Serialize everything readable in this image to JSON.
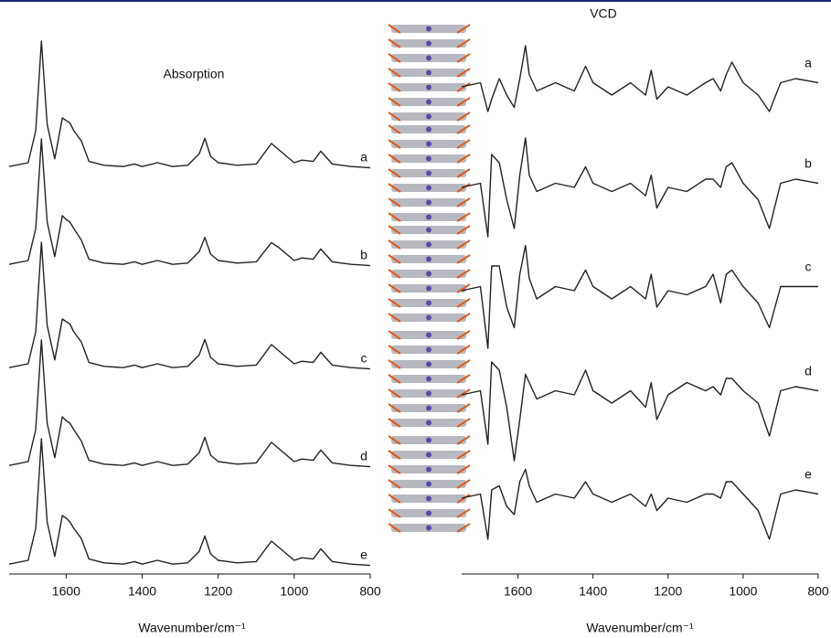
{
  "chart_data": [
    {
      "type": "line",
      "title": "Absorption",
      "x_label": "Wavenumber/cm⁻¹",
      "xlim": [
        1750,
        800
      ],
      "xticks": [
        1600,
        1400,
        1200,
        1000,
        800
      ],
      "color": "#222222",
      "x": [
        1750,
        1700,
        1680,
        1665,
        1650,
        1630,
        1610,
        1600,
        1590,
        1580,
        1560,
        1540,
        1500,
        1450,
        1420,
        1400,
        1360,
        1320,
        1280,
        1250,
        1235,
        1220,
        1200,
        1150,
        1100,
        1060,
        1040,
        1000,
        980,
        950,
        930,
        900,
        850,
        800
      ],
      "series": [
        {
          "name": "a",
          "values": [
            0.02,
            0.05,
            0.3,
            1.0,
            0.35,
            0.08,
            0.4,
            0.38,
            0.36,
            0.3,
            0.22,
            0.06,
            0.03,
            0.02,
            0.04,
            0.02,
            0.05,
            0.02,
            0.03,
            0.12,
            0.24,
            0.1,
            0.05,
            0.03,
            0.04,
            0.2,
            0.15,
            0.05,
            0.07,
            0.06,
            0.14,
            0.04,
            0.02,
            0.01
          ]
        },
        {
          "name": "b",
          "values": [
            0.02,
            0.05,
            0.3,
            1.0,
            0.35,
            0.08,
            0.4,
            0.37,
            0.35,
            0.3,
            0.21,
            0.06,
            0.03,
            0.02,
            0.04,
            0.02,
            0.05,
            0.02,
            0.03,
            0.12,
            0.23,
            0.1,
            0.05,
            0.03,
            0.04,
            0.19,
            0.15,
            0.05,
            0.07,
            0.06,
            0.14,
            0.04,
            0.02,
            0.01
          ]
        },
        {
          "name": "c",
          "values": [
            0.02,
            0.05,
            0.3,
            1.0,
            0.35,
            0.08,
            0.4,
            0.38,
            0.36,
            0.3,
            0.22,
            0.06,
            0.03,
            0.02,
            0.04,
            0.02,
            0.05,
            0.02,
            0.03,
            0.12,
            0.24,
            0.1,
            0.05,
            0.03,
            0.04,
            0.2,
            0.15,
            0.05,
            0.07,
            0.06,
            0.14,
            0.04,
            0.02,
            0.01
          ]
        },
        {
          "name": "d",
          "values": [
            0.02,
            0.05,
            0.3,
            1.0,
            0.35,
            0.08,
            0.4,
            0.37,
            0.35,
            0.3,
            0.21,
            0.06,
            0.03,
            0.02,
            0.04,
            0.02,
            0.05,
            0.02,
            0.03,
            0.12,
            0.24,
            0.1,
            0.05,
            0.03,
            0.04,
            0.2,
            0.15,
            0.05,
            0.07,
            0.06,
            0.14,
            0.04,
            0.02,
            0.01
          ]
        },
        {
          "name": "e",
          "values": [
            0.02,
            0.05,
            0.3,
            1.0,
            0.35,
            0.08,
            0.4,
            0.38,
            0.35,
            0.3,
            0.22,
            0.06,
            0.03,
            0.02,
            0.04,
            0.02,
            0.05,
            0.02,
            0.03,
            0.12,
            0.24,
            0.1,
            0.05,
            0.03,
            0.04,
            0.2,
            0.15,
            0.05,
            0.07,
            0.06,
            0.14,
            0.04,
            0.02,
            0.01
          ]
        }
      ]
    },
    {
      "type": "line",
      "title": "VCD",
      "x_label": "Wavenumber/cm⁻¹",
      "xlim": [
        1750,
        800
      ],
      "xticks": [
        1600,
        1400,
        1200,
        1000,
        800
      ],
      "color": "#222222",
      "x": [
        1750,
        1700,
        1680,
        1670,
        1650,
        1630,
        1610,
        1595,
        1580,
        1570,
        1550,
        1500,
        1450,
        1420,
        1400,
        1350,
        1300,
        1260,
        1245,
        1230,
        1200,
        1150,
        1100,
        1080,
        1060,
        1045,
        1030,
        1000,
        960,
        930,
        900,
        860,
        800
      ],
      "series": [
        {
          "name": "a",
          "values": [
            0,
            0.1,
            -0.6,
            -0.3,
            0.2,
            -0.2,
            -0.5,
            0.2,
            1.0,
            0.3,
            -0.1,
            0.1,
            -0.1,
            0.5,
            0.1,
            -0.2,
            0.1,
            -0.2,
            0.4,
            -0.3,
            0,
            -0.2,
            0.1,
            0.2,
            -0.1,
            0.3,
            0.6,
            0.1,
            -0.2,
            -0.6,
            0.1,
            0.2,
            0.1
          ]
        },
        {
          "name": "b",
          "values": [
            0,
            0.1,
            -1.2,
            0.8,
            0.6,
            -0.3,
            -1.0,
            0.3,
            1.2,
            0.3,
            -0.1,
            0.1,
            0,
            0.5,
            0.1,
            -0.1,
            0.1,
            -0.2,
            0.3,
            -0.5,
            0,
            -0.1,
            0.2,
            0.2,
            0,
            0.5,
            0.6,
            0.1,
            -0.3,
            -1.0,
            0.1,
            0.2,
            0.1
          ]
        },
        {
          "name": "c",
          "values": [
            0,
            0.1,
            -1.4,
            0.6,
            0.6,
            -0.4,
            -0.9,
            0.4,
            1.1,
            0.3,
            -0.2,
            0.1,
            0,
            0.5,
            0.1,
            -0.2,
            0.1,
            -0.2,
            0.4,
            -0.4,
            0,
            -0.1,
            0.1,
            0.4,
            -0.3,
            0.4,
            0.5,
            0.1,
            -0.3,
            -0.9,
            0.1,
            0.1,
            0.1
          ]
        },
        {
          "name": "d",
          "values": [
            0,
            0.1,
            -1.2,
            0.8,
            0.6,
            -0.3,
            -1.6,
            -0.6,
            0.5,
            0.3,
            -0.1,
            0.1,
            0,
            0.6,
            0.1,
            -0.2,
            0.1,
            -0.3,
            0.3,
            -0.6,
            0,
            0.3,
            0.1,
            0.2,
            0,
            0.4,
            0.4,
            0.1,
            -0.2,
            -1.0,
            0.1,
            0.2,
            0.1
          ]
        },
        {
          "name": "e",
          "values": [
            0,
            0.1,
            -1.0,
            0.2,
            0.3,
            -0.2,
            -0.4,
            0.4,
            0.7,
            0.3,
            -0.1,
            0.1,
            0,
            0.4,
            0.1,
            -0.1,
            0.1,
            -0.2,
            0.1,
            -0.3,
            0,
            -0.1,
            0.1,
            0.1,
            0,
            0.4,
            0.4,
            0.1,
            -0.3,
            -1.0,
            0.1,
            0.2,
            0.1
          ]
        }
      ]
    }
  ]
}
